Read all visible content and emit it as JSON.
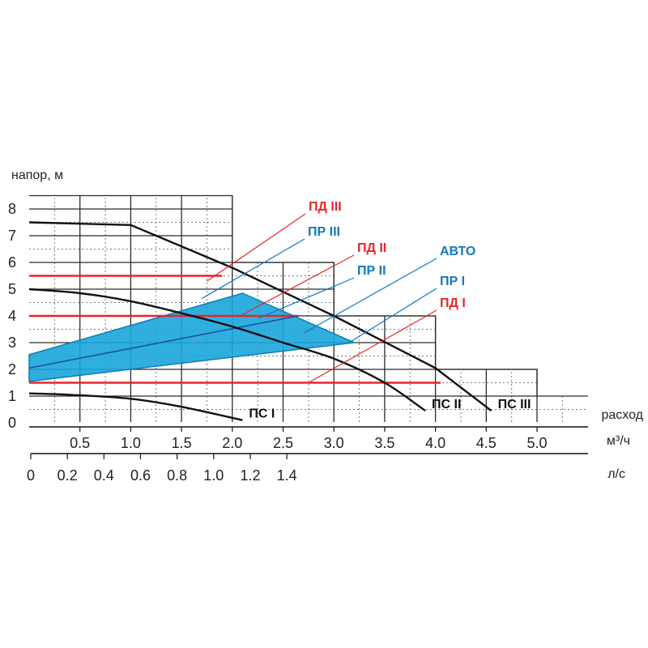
{
  "chart_data": {
    "type": "line",
    "title": "",
    "ylabel": "напор, м",
    "xlabel": "расход",
    "x_unit_primary": "м³/ч",
    "x_unit_secondary": "л/с",
    "xlim": [
      0,
      5.5
    ],
    "ylim": [
      0,
      8.5
    ],
    "x_ticks": [
      {
        "value": 0.5,
        "label": "0.5"
      },
      {
        "value": 1.0,
        "label": "1.0"
      },
      {
        "value": 1.5,
        "label": "1.5"
      },
      {
        "value": 2.0,
        "label": "2.0"
      },
      {
        "value": 2.5,
        "label": "2.5"
      },
      {
        "value": 3.0,
        "label": "3.0"
      },
      {
        "value": 3.5,
        "label": "3.5"
      },
      {
        "value": 4.0,
        "label": "4.0"
      },
      {
        "value": 4.5,
        "label": "4.5"
      },
      {
        "value": 5.0,
        "label": "5.0"
      }
    ],
    "secondary_ticks": [
      {
        "value": 0,
        "label": "0"
      },
      {
        "value": 0.2,
        "label": "0.2"
      },
      {
        "value": 0.4,
        "label": "0.4"
      },
      {
        "value": 0.6,
        "label": "0.6"
      },
      {
        "value": 0.8,
        "label": "0.8"
      },
      {
        "value": 1.0,
        "label": "1.0"
      },
      {
        "value": 1.2,
        "label": "1.2"
      },
      {
        "value": 1.4,
        "label": "1.4"
      }
    ],
    "y_ticks": [
      {
        "value": 0,
        "label": "0"
      },
      {
        "value": 1,
        "label": "1"
      },
      {
        "value": 2,
        "label": "2"
      },
      {
        "value": 3,
        "label": "3"
      },
      {
        "value": 4,
        "label": "4"
      },
      {
        "value": 5,
        "label": "5"
      },
      {
        "value": 6,
        "label": "6"
      },
      {
        "value": 7,
        "label": "7"
      },
      {
        "value": 8,
        "label": "8"
      }
    ],
    "grid_steps": [
      {
        "x_max": 2.0,
        "y_max": 8.5
      },
      {
        "x_max": 3.0,
        "y_max": 6.0
      },
      {
        "x_max": 4.0,
        "y_max": 4.0
      },
      {
        "x_max": 5.0,
        "y_max": 2.0
      },
      {
        "x_max": 5.5,
        "y_max": 1.0
      }
    ],
    "series": [
      {
        "name": "ПС I",
        "label": "ПС I",
        "points": [
          [
            0,
            1.1
          ],
          [
            0.4,
            1.05
          ],
          [
            1.0,
            0.9
          ],
          [
            1.5,
            0.6
          ],
          [
            2.1,
            0.1
          ]
        ]
      },
      {
        "name": "ПС II",
        "label": "ПС II",
        "points": [
          [
            0,
            5.0
          ],
          [
            0.5,
            4.85
          ],
          [
            1.0,
            4.55
          ],
          [
            1.5,
            4.1
          ],
          [
            2.0,
            3.6
          ],
          [
            2.5,
            3.0
          ],
          [
            3.0,
            2.4
          ],
          [
            3.5,
            1.5
          ],
          [
            3.9,
            0.45
          ]
        ]
      },
      {
        "name": "ПС III",
        "label": "ПС III",
        "points": [
          [
            0,
            7.5
          ],
          [
            1.0,
            7.4
          ],
          [
            2.0,
            5.8
          ],
          [
            3.0,
            4.0
          ],
          [
            4.0,
            2.05
          ],
          [
            4.55,
            0.45
          ]
        ]
      }
    ],
    "operating_zone": {
      "name": "ПР zone",
      "color": "#1aa6db",
      "edge_color": "#0d7fb0",
      "polygon": [
        [
          0,
          2.55
        ],
        [
          2.1,
          4.85
        ],
        [
          3.2,
          3.0
        ],
        [
          0,
          1.55
        ]
      ]
    },
    "constant_pressure_lines": [
      {
        "name": "ПД III",
        "y": 5.5,
        "x_range": [
          0,
          1.9
        ]
      },
      {
        "name": "ПД II",
        "y": 4.0,
        "x_range": [
          0,
          2.65
        ]
      },
      {
        "name": "ПД I",
        "y": 1.5,
        "x_range": [
          0,
          4.05
        ]
      }
    ],
    "proportional_lines": [
      {
        "name": "ПР II",
        "points": [
          [
            0,
            2.05
          ],
          [
            2.65,
            4.0
          ]
        ]
      }
    ],
    "legend": [
      {
        "label": "ПД III",
        "color": "#e8242b",
        "anchor": [
          1.75,
          5.3
        ]
      },
      {
        "label": "ПР III",
        "color": "#1278c2",
        "anchor": [
          1.7,
          4.65
        ]
      },
      {
        "label": "ПД II",
        "color": "#e8242b",
        "anchor": [
          2.1,
          4.05
        ]
      },
      {
        "label": "АВТО",
        "color": "#1278c2",
        "anchor": [
          2.7,
          3.35
        ]
      },
      {
        "label": "ПР II",
        "color": "#1278c2",
        "anchor": [
          2.25,
          3.9
        ]
      },
      {
        "label": "ПР I",
        "color": "#1278c2",
        "anchor": [
          3.15,
          3.0
        ]
      },
      {
        "label": "ПД I",
        "color": "#e8242b",
        "anchor": [
          2.75,
          1.5
        ]
      }
    ]
  }
}
